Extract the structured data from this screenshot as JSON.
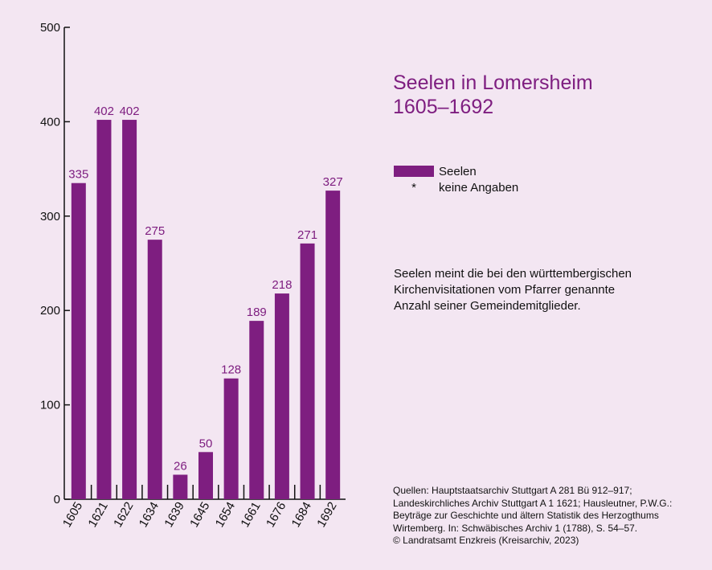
{
  "chart_data": {
    "type": "bar",
    "title": "Seelen in Lomersheim",
    "subtitle": "1605–1692",
    "categories": [
      "1605",
      "1621",
      "1622",
      "1634",
      "1639",
      "1645",
      "1654",
      "1661",
      "1676",
      "1684",
      "1692"
    ],
    "series": [
      {
        "name": "Seelen",
        "values": [
          335,
          402,
          402,
          275,
          26,
          50,
          128,
          189,
          218,
          271,
          327
        ]
      }
    ],
    "data_labels": [
      "335",
      "402",
      "402",
      "275",
      "26",
      "50",
      "128",
      "189",
      "218",
      "271",
      "327"
    ],
    "yticks": [
      "0",
      "100",
      "200",
      "300",
      "400",
      "500"
    ],
    "ylim": [
      0,
      500
    ],
    "grid": false,
    "legend_position": "right",
    "bar_color": "#7e1e80"
  },
  "legend": {
    "items": [
      {
        "type": "swatch",
        "label": "Seelen"
      },
      {
        "type": "symbol",
        "symbol": "*",
        "label": "keine Angaben"
      }
    ]
  },
  "note": {
    "lines": [
      "Seelen meint die bei den württembergischen",
      "Kirchenvisitationen vom Pfarrer genannte",
      "Anzahl seiner Gemeindemitglieder."
    ]
  },
  "sources": {
    "lines": [
      "Quellen: Hauptstaatsarchiv Stuttgart A 281 Bü 912–917;",
      "Landeskirchliches Archiv Stuttgart A 1 1621; Hausleutner, P.W.G.:",
      "Beyträge zur Geschichte und ältern Statistik des Herzogthums",
      "Wirtemberg. In: Schwäbisches Archiv 1 (1788), S. 54–57.",
      "© Landratsamt Enzkreis (Kreisarchiv, 2023)"
    ]
  },
  "colors": {
    "background": "#f3e6f2",
    "accent": "#7e1e80",
    "axis": "#111111"
  }
}
